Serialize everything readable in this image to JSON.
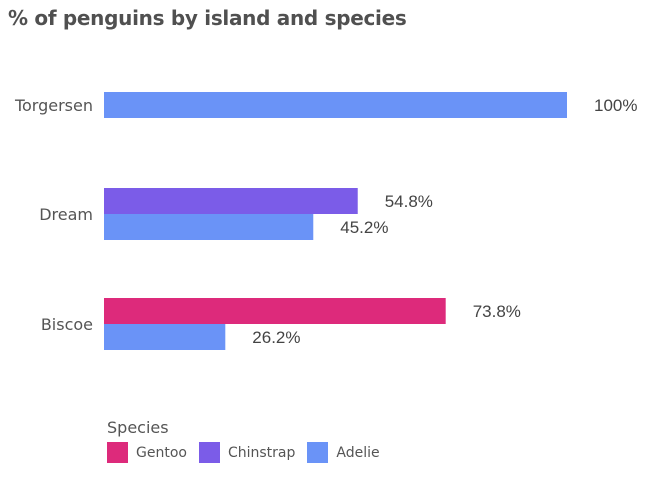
{
  "chart_data": {
    "type": "bar",
    "orientation": "horizontal",
    "title": "% of penguins by island and species",
    "categories": [
      "Torgersen",
      "Dream",
      "Biscoe"
    ],
    "series": [
      {
        "name": "Gentoo",
        "color": "#dd2a7b",
        "values": [
          null,
          null,
          73.8
        ],
        "labels": [
          "",
          "",
          "73.8%"
        ]
      },
      {
        "name": "Chinstrap",
        "color": "#7b5ce8",
        "values": [
          null,
          54.8,
          null
        ],
        "labels": [
          "",
          "54.8%",
          ""
        ]
      },
      {
        "name": "Adelie",
        "color": "#6a93f7",
        "values": [
          100,
          45.2,
          26.2
        ],
        "labels": [
          "100%",
          "45.2%",
          "26.2%"
        ]
      }
    ],
    "xlim": [
      0,
      100
    ],
    "legend_title": "Species",
    "legend_position": "bottom-left",
    "grid": false
  }
}
